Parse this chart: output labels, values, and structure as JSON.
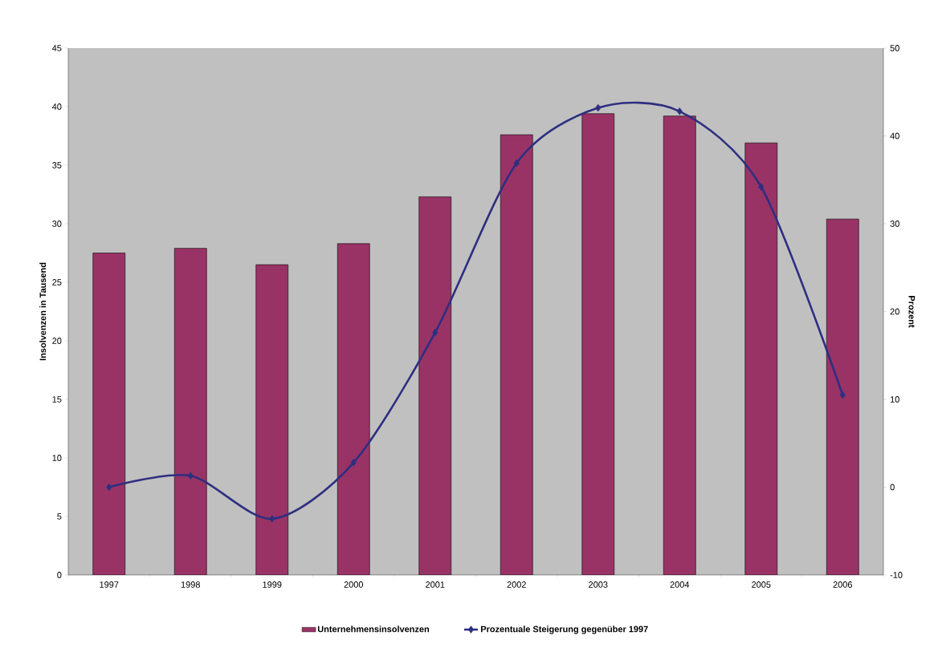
{
  "chart_data": {
    "type": "bar",
    "categories": [
      "1997",
      "1998",
      "1999",
      "2000",
      "2001",
      "2002",
      "2003",
      "2004",
      "2005",
      "2006"
    ],
    "series": [
      {
        "name": "Unternehmensinsolvenzen",
        "color": "#993366",
        "values": [
          27.5,
          27.9,
          26.5,
          28.3,
          32.3,
          37.6,
          39.4,
          39.2,
          36.9,
          30.4
        ]
      },
      {
        "name": "Prozentuale Steigerung gegenüber 1997",
        "type": "line",
        "axis": "y2",
        "color": "#2e2e80",
        "values": [
          0,
          1.3,
          -3.6,
          2.8,
          17.6,
          36.9,
          43.2,
          42.8,
          34.2,
          10.5
        ]
      }
    ],
    "ylabel": "Insolvenzen in Tausend",
    "y2label": "Prozent",
    "ylim": [
      0,
      45
    ],
    "yticks": [
      0,
      5,
      10,
      15,
      20,
      25,
      30,
      35,
      40,
      45
    ],
    "y2lim": [
      -10,
      50
    ],
    "y2ticks": [
      -10,
      0,
      10,
      20,
      30,
      40,
      50
    ],
    "marker": "diamond",
    "legend": "bottom"
  }
}
